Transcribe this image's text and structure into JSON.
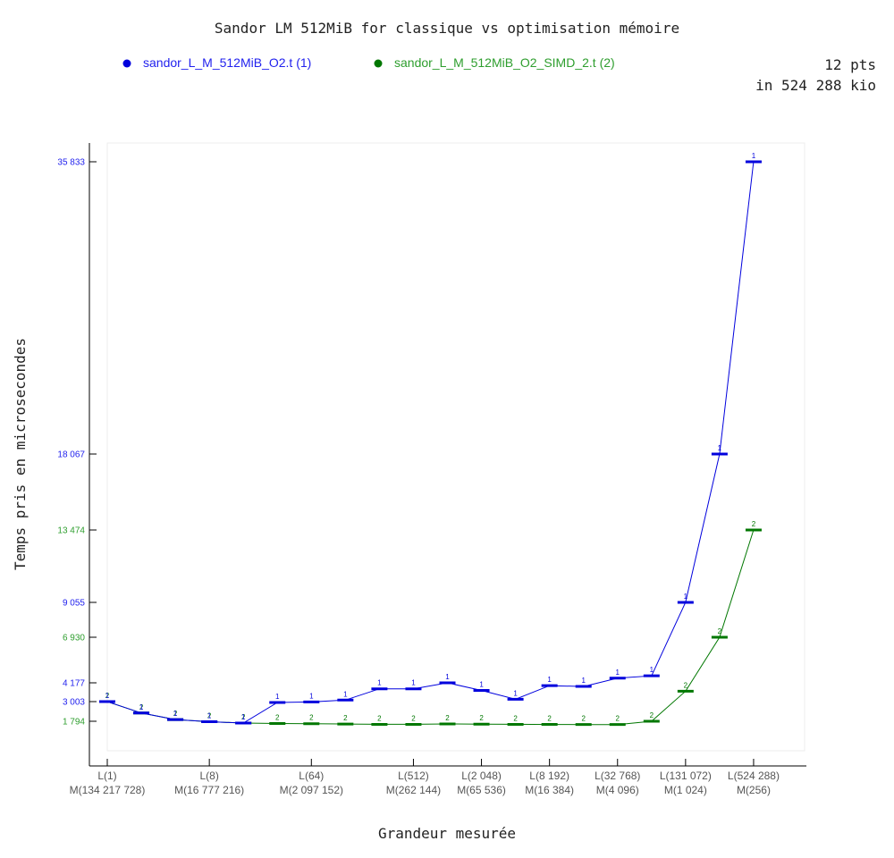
{
  "chart_data": {
    "type": "line",
    "title": "Sandor LM 512MiB for classique vs optimisation mémoire",
    "xlabel": "Grandeur mesurée",
    "ylabel": "Temps pris en microsecondes",
    "info": [
      "12 pts",
      "in 524 288 kio"
    ],
    "legend_position": "top",
    "grid": false,
    "x_count": 19,
    "x_ticks": [
      {
        "i": 0,
        "line1": "L(1)",
        "line2": "M(134 217 728)"
      },
      {
        "i": 3,
        "line1": "L(8)",
        "line2": "M(16 777 216)"
      },
      {
        "i": 6,
        "line1": "L(64)",
        "line2": "M(2 097 152)"
      },
      {
        "i": 9,
        "line1": "L(512)",
        "line2": "M(262 144)"
      },
      {
        "i": 11,
        "line1": "L(2 048)",
        "line2": "M(65 536)"
      },
      {
        "i": 13,
        "line1": "L(8 192)",
        "line2": "M(16 384)"
      },
      {
        "i": 15,
        "line1": "L(32 768)",
        "line2": "M(4 096)"
      },
      {
        "i": 17,
        "line1": "L(131 072)",
        "line2": "M(1 024)"
      },
      {
        "i": 19,
        "line1": "L(524 288)",
        "line2": "M(256)"
      }
    ],
    "y_ticks": [
      {
        "value": 1794,
        "label": "1 794",
        "color": "#2e9e2e"
      },
      {
        "value": 3003,
        "label": "3 003",
        "color": "#2222ee"
      },
      {
        "value": 4177,
        "label": "4 177",
        "color": "#2222ee"
      },
      {
        "value": 6930,
        "label": "6 930",
        "color": "#2e9e2e"
      },
      {
        "value": 9055,
        "label": "9 055",
        "color": "#2222ee"
      },
      {
        "value": 13474,
        "label": "13 474",
        "color": "#2e9e2e"
      },
      {
        "value": 18067,
        "label": "18 067",
        "color": "#2222ee"
      },
      {
        "value": 35833,
        "label": "35 833",
        "color": "#2222ee"
      }
    ],
    "ylim": [
      0,
      35833
    ],
    "series": [
      {
        "name": "sandor_L_M_512MiB_O2.t (1)",
        "marker_label": "1",
        "color": "#0000dd",
        "x": [
          0,
          1,
          2,
          3,
          4,
          5,
          6,
          7,
          8,
          9,
          10,
          11,
          12,
          13,
          14,
          15,
          16,
          17,
          18,
          19
        ],
        "y": [
          3003,
          2300,
          1900,
          1750,
          1620,
          2950,
          2980,
          3100,
          3800,
          3800,
          4177,
          3700,
          3150,
          4000,
          3950,
          4460,
          4600,
          9055,
          18067,
          35833
        ]
      },
      {
        "name": "sandor_L_M_512MiB_O2_SIMD_2.t (2)",
        "marker_label": "2",
        "color": "#007700",
        "x": [
          0,
          1,
          2,
          3,
          4,
          5,
          6,
          7,
          8,
          9,
          10,
          11,
          12,
          13,
          14,
          15,
          16,
          17,
          18,
          19
        ],
        "y": [
          3003,
          2300,
          1900,
          1750,
          1620,
          1580,
          1560,
          1530,
          1500,
          1500,
          1540,
          1520,
          1500,
          1490,
          1480,
          1480,
          1794,
          3650,
          6930,
          13474
        ]
      }
    ]
  }
}
